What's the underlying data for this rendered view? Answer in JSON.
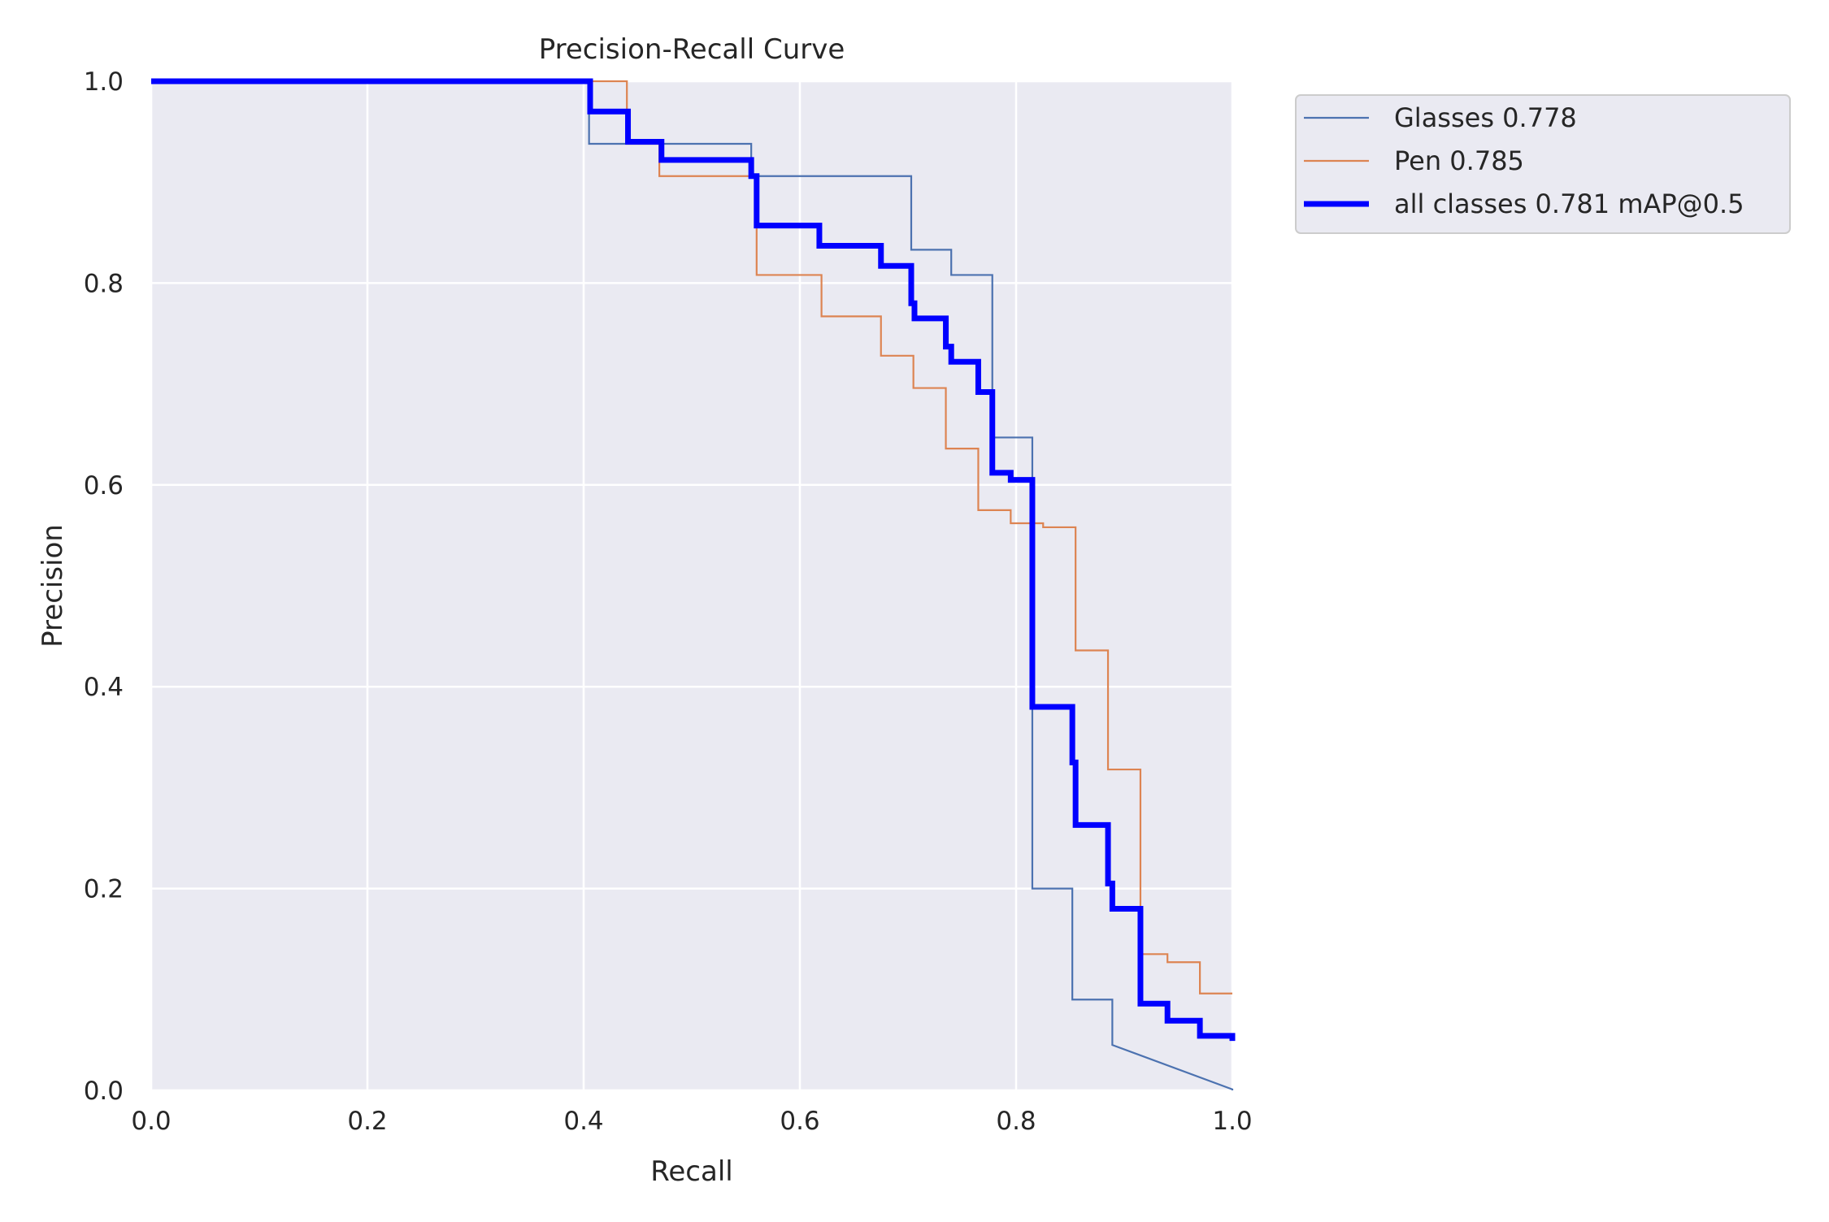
{
  "chart_data": {
    "type": "line",
    "title": "Precision-Recall Curve",
    "xlabel": "Recall",
    "ylabel": "Precision",
    "xlim": [
      0.0,
      1.0
    ],
    "ylim": [
      0.0,
      1.0
    ],
    "xticks": [
      "0.0",
      "0.2",
      "0.4",
      "0.6",
      "0.8",
      "1.0"
    ],
    "yticks": [
      "0.0",
      "0.2",
      "0.4",
      "0.6",
      "0.8",
      "1.0"
    ],
    "grid": true,
    "legend_position": "outside-upper-right",
    "colors": {
      "background": "#eaeaf2",
      "grid": "#ffffff",
      "text": "#262626",
      "glasses": "#4c72b0",
      "pen": "#dd8452",
      "all": "#0000ff"
    },
    "series": [
      {
        "name": "Glasses 0.778",
        "color": "#4c72b0",
        "x": [
          0.0,
          0.405,
          0.405,
          0.555,
          0.555,
          0.703,
          0.703,
          0.74,
          0.74,
          0.778,
          0.778,
          0.815,
          0.815,
          0.852,
          0.852,
          0.889,
          0.889,
          1.0,
          1.0
        ],
        "y": [
          1.0,
          1.0,
          0.938,
          0.938,
          0.906,
          0.906,
          0.833,
          0.833,
          0.808,
          0.808,
          0.647,
          0.647,
          0.2,
          0.2,
          0.09,
          0.09,
          0.045,
          0.001,
          0.0
        ]
      },
      {
        "name": "Pen 0.785",
        "color": "#dd8452",
        "x": [
          0.0,
          0.44,
          0.44,
          0.47,
          0.47,
          0.56,
          0.56,
          0.62,
          0.62,
          0.675,
          0.675,
          0.705,
          0.705,
          0.735,
          0.735,
          0.765,
          0.765,
          0.795,
          0.795,
          0.825,
          0.825,
          0.855,
          0.855,
          0.885,
          0.885,
          0.915,
          0.915,
          0.94,
          0.94,
          0.97,
          0.97,
          1.0
        ],
        "y": [
          1.0,
          1.0,
          0.938,
          0.938,
          0.906,
          0.906,
          0.808,
          0.808,
          0.767,
          0.767,
          0.728,
          0.728,
          0.696,
          0.696,
          0.636,
          0.636,
          0.575,
          0.575,
          0.562,
          0.562,
          0.558,
          0.558,
          0.436,
          0.436,
          0.318,
          0.318,
          0.135,
          0.135,
          0.127,
          0.127,
          0.096,
          0.096
        ]
      },
      {
        "name": "all classes 0.781 mAP@0.5",
        "color": "#0000ff",
        "x": [
          0.0,
          0.406,
          0.406,
          0.441,
          0.441,
          0.472,
          0.472,
          0.555,
          0.555,
          0.56,
          0.56,
          0.618,
          0.618,
          0.675,
          0.675,
          0.703,
          0.703,
          0.706,
          0.706,
          0.735,
          0.735,
          0.74,
          0.74,
          0.765,
          0.765,
          0.778,
          0.778,
          0.795,
          0.795,
          0.815,
          0.815,
          0.852,
          0.852,
          0.855,
          0.855,
          0.885,
          0.885,
          0.889,
          0.889,
          0.915,
          0.915,
          0.94,
          0.94,
          0.97,
          0.97,
          1.0,
          1.0
        ],
        "y": [
          1.0,
          1.0,
          0.97,
          0.97,
          0.94,
          0.94,
          0.922,
          0.922,
          0.906,
          0.906,
          0.857,
          0.857,
          0.837,
          0.837,
          0.817,
          0.817,
          0.78,
          0.78,
          0.765,
          0.765,
          0.737,
          0.737,
          0.722,
          0.722,
          0.692,
          0.692,
          0.612,
          0.612,
          0.605,
          0.605,
          0.38,
          0.38,
          0.325,
          0.325,
          0.263,
          0.263,
          0.205,
          0.205,
          0.18,
          0.18,
          0.086,
          0.086,
          0.069,
          0.069,
          0.054,
          0.054,
          0.049
        ]
      }
    ]
  }
}
